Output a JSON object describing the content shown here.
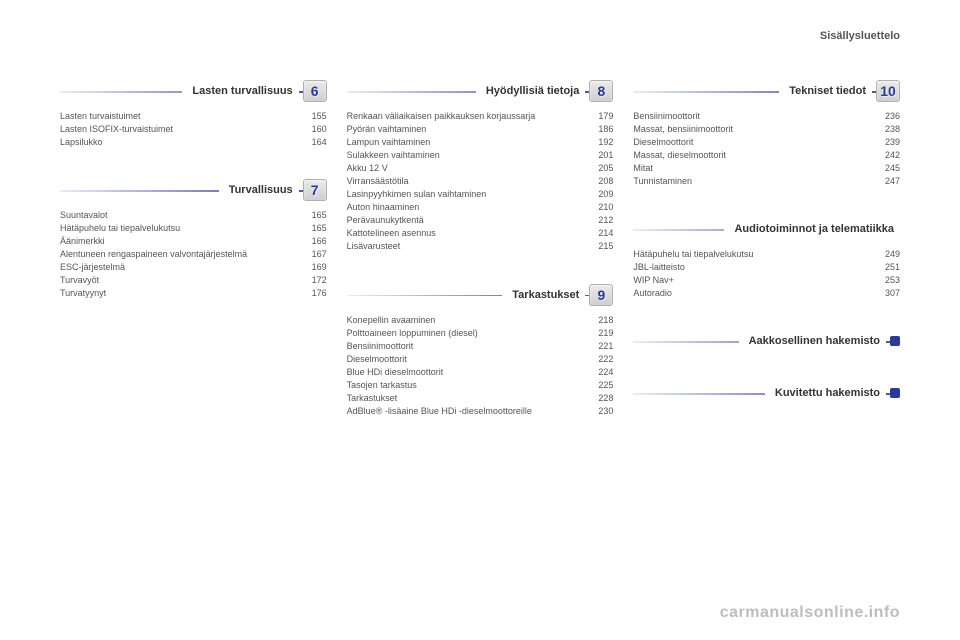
{
  "header": "Sisällysluettelo",
  "watermark": "carmanualsonline.info",
  "columns": [
    {
      "sections": [
        {
          "number": "6",
          "title": "Lasten turvallisuus",
          "items": [
            {
              "label": "Lasten turvaistuimet",
              "page": "155"
            },
            {
              "label": "Lasten ISOFIX-turvaistuimet",
              "page": "160"
            },
            {
              "label": "Lapsilukko",
              "page": "164"
            }
          ]
        },
        {
          "number": "7",
          "title": "Turvallisuus",
          "items": [
            {
              "label": "Suuntavalot",
              "page": "165"
            },
            {
              "label": "Hätäpuhelu tai tiepalvelukutsu",
              "page": "165"
            },
            {
              "label": "Äänimerkki",
              "page": "166"
            },
            {
              "label": "Alentuneen rengaspaineen valvontajärjestelmä",
              "page": "167"
            },
            {
              "label": "ESC-järjestelmä",
              "page": "169"
            },
            {
              "label": "Turvavyöt",
              "page": "172"
            },
            {
              "label": "Turvatyynyt",
              "page": "176"
            }
          ]
        }
      ]
    },
    {
      "sections": [
        {
          "number": "8",
          "title": "Hyödyllisiä tietoja",
          "items": [
            {
              "label": "Renkaan väliaikaisen paikkauksen korjaussarja",
              "page": "179"
            },
            {
              "label": "Pyörän vaihtaminen",
              "page": "186"
            },
            {
              "label": "Lampun vaihtaminen",
              "page": "192"
            },
            {
              "label": "Sulakkeen vaihtaminen",
              "page": "201"
            },
            {
              "label": "Akku 12 V",
              "page": "205"
            },
            {
              "label": "Virransäästötila",
              "page": "208"
            },
            {
              "label": "Lasinpyyhkimen sulan vaihtaminen",
              "page": "209"
            },
            {
              "label": "Auton hinaaminen",
              "page": "210"
            },
            {
              "label": "Perävaunukytkentä",
              "page": "212"
            },
            {
              "label": "Kattotelineen asennus",
              "page": "214"
            },
            {
              "label": "Lisävarusteet",
              "page": "215"
            }
          ]
        },
        {
          "number": "9",
          "title": "Tarkastukset",
          "items": [
            {
              "label": "Konepellin avaaminen",
              "page": "218"
            },
            {
              "label": "Polttoaineen loppuminen (diesel)",
              "page": "219"
            },
            {
              "label": "Bensiinimoottorit",
              "page": "221"
            },
            {
              "label": "Dieselmoottorit",
              "page": "222"
            },
            {
              "label": "Blue HDi dieselmoottorit",
              "page": "224"
            },
            {
              "label": "Tasojen tarkastus",
              "page": "225"
            },
            {
              "label": "Tarkastukset",
              "page": "228"
            },
            {
              "label": "AdBlue® -lisäaine Blue HDi -dieselmoottoreille",
              "page": "230"
            }
          ]
        }
      ]
    },
    {
      "sections": [
        {
          "number": "10",
          "title": "Tekniset tiedot",
          "items": [
            {
              "label": "Bensiinimoottorit",
              "page": "236"
            },
            {
              "label": "Massat, bensiinimoottorit",
              "page": "238"
            },
            {
              "label": "Dieselmoottorit",
              "page": "239"
            },
            {
              "label": "Massat, dieselmoottorit",
              "page": "242"
            },
            {
              "label": "Mitat",
              "page": "245"
            },
            {
              "label": "Tunnistaminen",
              "page": "247"
            }
          ]
        },
        {
          "number": "",
          "title": "Audiotoiminnot ja telematiikka",
          "items": [
            {
              "label": "Hätäpuhelu tai tiepalvelukutsu",
              "page": "249"
            },
            {
              "label": "JBL-laitteisto",
              "page": "251"
            },
            {
              "label": "WIP Nav+",
              "page": "253"
            },
            {
              "label": "Autoradio",
              "page": "307"
            }
          ]
        },
        {
          "plain": true,
          "title": "Aakkosellinen hakemisto",
          "items": []
        },
        {
          "plain": true,
          "title": "Kuvitettu hakemisto",
          "items": []
        }
      ]
    }
  ]
}
